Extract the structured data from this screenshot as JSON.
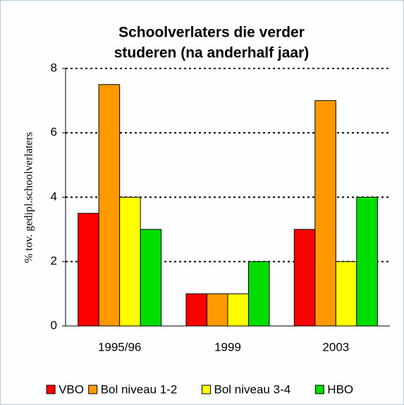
{
  "chart_data": {
    "type": "bar",
    "title": [
      "Schoolverlaters die verder",
      "studeren (na anderhalf jaar)"
    ],
    "y_label": "% tov. gedipl.schoolverlaters",
    "categories": [
      "1995/96",
      "1999",
      "2003"
    ],
    "series": [
      {
        "name": "VBO",
        "color": "#ff0000",
        "values": [
          3.5,
          1,
          3
        ]
      },
      {
        "name": "Bol niveau 1-2",
        "color": "#ff9900",
        "values": [
          7.5,
          1,
          7
        ]
      },
      {
        "name": "Bol niveau 3-4",
        "color": "#ffff00",
        "values": [
          4,
          1,
          2
        ]
      },
      {
        "name": "HBO",
        "color": "#00dd00",
        "values": [
          3,
          2,
          4
        ]
      }
    ],
    "ylim": [
      0,
      8
    ],
    "yticks": [
      0,
      2,
      4,
      6,
      8
    ],
    "grid": true,
    "legend": "bottom"
  }
}
